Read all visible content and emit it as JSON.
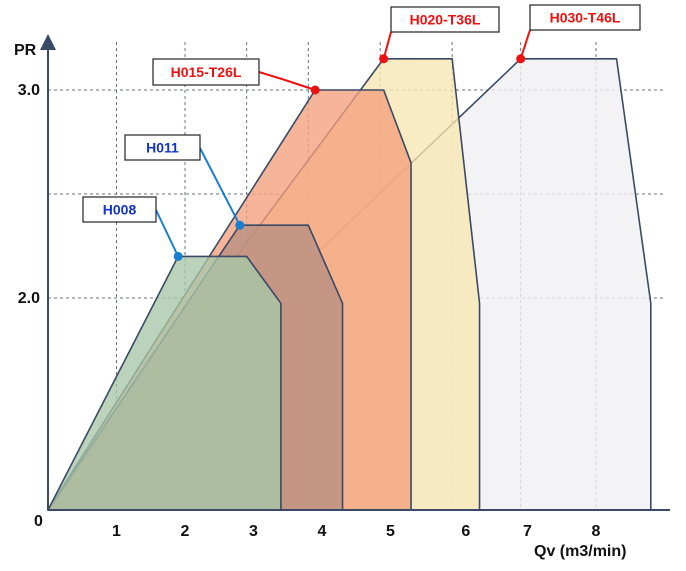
{
  "chart_data": {
    "type": "area",
    "title": "",
    "xlabel": "Qv (m3/min)",
    "ylabel": "PR",
    "origin_label": "0",
    "x_ticks": [
      "1",
      "2",
      "3",
      "4",
      "5",
      "6",
      "7",
      "8"
    ],
    "y_ticks": [
      "2.0",
      "3.0"
    ],
    "grid": true,
    "series": [
      {
        "name": "H030-T46L",
        "fill": "#eff0f2",
        "stroke": "#3a4a66",
        "label_color": "#ee1111",
        "points": [
          [
            0,
            0
          ],
          [
            6.9,
            3.15
          ],
          [
            8.3,
            3.15
          ],
          [
            8.8,
            1.95
          ],
          [
            8.8,
            0
          ]
        ]
      },
      {
        "name": "H020-T36L",
        "fill": "#f9e7b1",
        "stroke": "#3a4a66",
        "label_color": "#ee1111",
        "points": [
          [
            0,
            0
          ],
          [
            4.9,
            3.15
          ],
          [
            5.9,
            3.15
          ],
          [
            6.3,
            1.95
          ],
          [
            6.3,
            0
          ]
        ]
      },
      {
        "name": "H015-T26L",
        "fill": "#f4a07c",
        "stroke": "#3a4a66",
        "label_color": "#ee1111",
        "points": [
          [
            0,
            0
          ],
          [
            3.9,
            3.0
          ],
          [
            4.9,
            3.0
          ],
          [
            5.3,
            2.65
          ],
          [
            5.3,
            0
          ]
        ]
      },
      {
        "name": "H011",
        "fill": "#b78e82",
        "stroke": "#3a4a66",
        "label_color": "#1133cc",
        "points": [
          [
            0,
            0
          ],
          [
            2.8,
            2.35
          ],
          [
            3.8,
            2.35
          ],
          [
            4.3,
            1.95
          ],
          [
            4.3,
            0
          ]
        ]
      },
      {
        "name": "H008",
        "fill": "#a8c7a8",
        "stroke": "#3a4a66",
        "label_color": "#1133cc",
        "points": [
          [
            0,
            0
          ],
          [
            1.9,
            2.2
          ],
          [
            2.9,
            2.2
          ],
          [
            3.4,
            1.95
          ],
          [
            3.4,
            0
          ]
        ]
      }
    ]
  }
}
